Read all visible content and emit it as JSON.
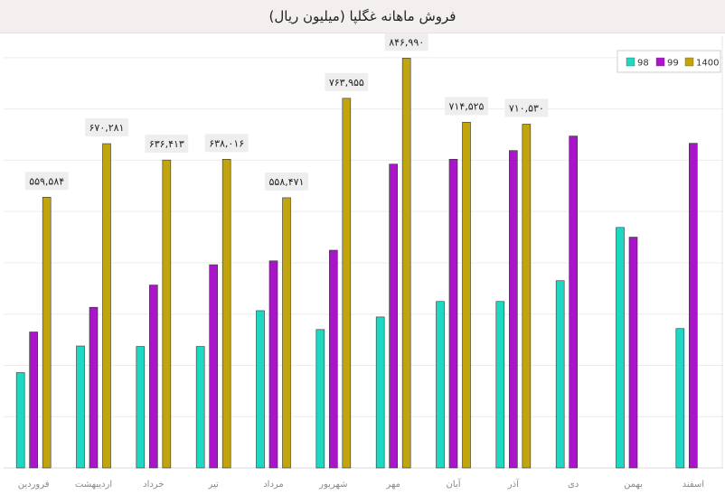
{
  "chart_data": {
    "type": "bar",
    "title": "فروش ماهانه غگلپا (میلیون ریال)",
    "xlabel": "",
    "ylabel": "",
    "ylim": [
      0,
      900000
    ],
    "grid": true,
    "legend_position": "top-right",
    "categories": [
      "فروردین",
      "اردیبهشت",
      "خرداد",
      "تیر",
      "مرداد",
      "شهریور",
      "مهر",
      "آبان",
      "آذر",
      "دی",
      "بهمن",
      "اسفند"
    ],
    "series": [
      {
        "name": "98",
        "color": "#1ed8c4",
        "values": [
          197000,
          252000,
          251000,
          251000,
          325000,
          286000,
          312000,
          344000,
          344000,
          387000,
          497000,
          288000
        ]
      },
      {
        "name": "99",
        "color": "#a915c9",
        "values": [
          281000,
          332000,
          378000,
          420000,
          428000,
          450000,
          628000,
          638000,
          656000,
          686000,
          477000,
          671000
        ]
      },
      {
        "name": "1400",
        "color": "#c2a40e",
        "values": [
          559584,
          670281,
          636413,
          638016,
          558471,
          763955,
          846990,
          714525,
          710530,
          null,
          null,
          null
        ]
      }
    ],
    "data_labels": [
      "۵۵۹,۵۸۴",
      "۶۷۰,۲۸۱",
      "۶۳۶,۴۱۳",
      "۶۳۸,۰۱۶",
      "۵۵۸,۴۷۱",
      "۷۶۳,۹۵۵",
      "۸۴۶,۹۹۰",
      "۷۱۴,۵۲۵",
      "۷۱۰,۵۳۰",
      "",
      "",
      ""
    ]
  }
}
